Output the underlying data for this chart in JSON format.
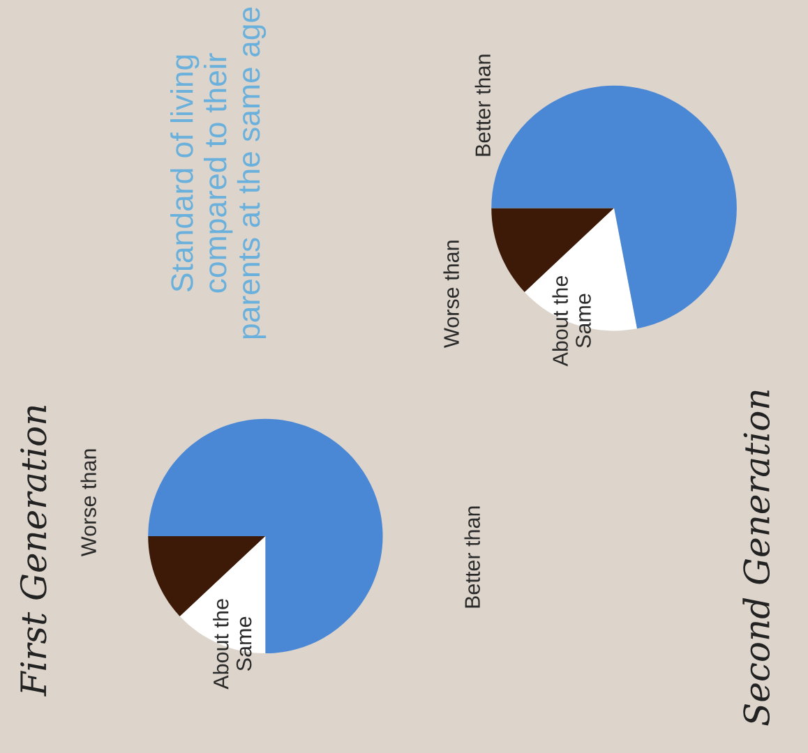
{
  "chart_data": [
    {
      "type": "pie",
      "title": "First Generation",
      "subtitle": "Standard of living compared to their parents at the same age",
      "categories": [
        "Worse than",
        "About the\nSame",
        "Better than"
      ],
      "values": [
        12,
        13,
        75
      ],
      "colors": [
        "#3d1a08",
        "#ffffff",
        "#4a88d6"
      ]
    },
    {
      "type": "pie",
      "title": "Second Generation",
      "categories": [
        "Worse than",
        "About the\nSame",
        "Better than"
      ],
      "values": [
        12,
        16,
        72
      ],
      "colors": [
        "#3d1a08",
        "#ffffff",
        "#4a88d6"
      ]
    }
  ]
}
